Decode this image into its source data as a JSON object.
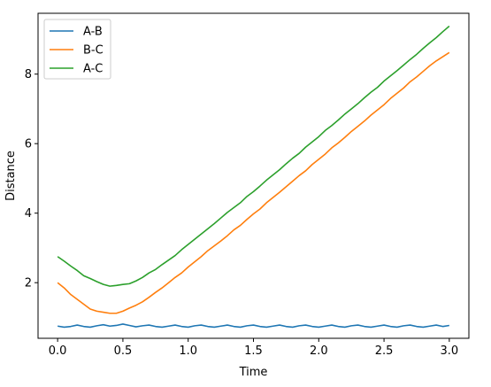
{
  "chart_data": {
    "type": "line",
    "title": "",
    "xlabel": "Time",
    "ylabel": "Distance",
    "xlim": [
      -0.15,
      3.15
    ],
    "ylim": [
      0.4,
      9.75
    ],
    "xticks": [
      0.0,
      0.5,
      1.0,
      1.5,
      2.0,
      2.5,
      3.0
    ],
    "xtick_labels": [
      "0.0",
      "0.5",
      "1.0",
      "1.5",
      "2.0",
      "2.5",
      "3.0"
    ],
    "yticks": [
      2,
      4,
      6,
      8
    ],
    "ytick_labels": [
      "2",
      "4",
      "6",
      "8"
    ],
    "grid": false,
    "legend_position": "top-left",
    "series": [
      {
        "name": "A-B",
        "color": "#1f77b4",
        "x": [
          0.0,
          0.05,
          0.1,
          0.15,
          0.2,
          0.25,
          0.3,
          0.35,
          0.4,
          0.45,
          0.5,
          0.55,
          0.6,
          0.65,
          0.7,
          0.75,
          0.8,
          0.85,
          0.9,
          0.95,
          1.0,
          1.05,
          1.1,
          1.15,
          1.2,
          1.25,
          1.3,
          1.35,
          1.4,
          1.45,
          1.5,
          1.55,
          1.6,
          1.65,
          1.7,
          1.75,
          1.8,
          1.85,
          1.9,
          1.95,
          2.0,
          2.05,
          2.1,
          2.15,
          2.2,
          2.25,
          2.3,
          2.35,
          2.4,
          2.45,
          2.5,
          2.55,
          2.6,
          2.65,
          2.7,
          2.75,
          2.8,
          2.85,
          2.9,
          2.95,
          3.0
        ],
        "y": [
          0.75,
          0.72,
          0.74,
          0.78,
          0.74,
          0.72,
          0.76,
          0.79,
          0.75,
          0.77,
          0.81,
          0.77,
          0.73,
          0.76,
          0.78,
          0.74,
          0.72,
          0.75,
          0.78,
          0.74,
          0.72,
          0.76,
          0.78,
          0.74,
          0.72,
          0.75,
          0.78,
          0.74,
          0.72,
          0.76,
          0.78,
          0.74,
          0.72,
          0.75,
          0.78,
          0.74,
          0.72,
          0.76,
          0.78,
          0.74,
          0.72,
          0.75,
          0.78,
          0.74,
          0.72,
          0.76,
          0.78,
          0.74,
          0.72,
          0.75,
          0.78,
          0.74,
          0.72,
          0.76,
          0.78,
          0.74,
          0.72,
          0.75,
          0.78,
          0.74,
          0.77
        ]
      },
      {
        "name": "B-C",
        "color": "#ff7f0e",
        "x": [
          0.0,
          0.05,
          0.1,
          0.15,
          0.2,
          0.25,
          0.3,
          0.35,
          0.4,
          0.45,
          0.5,
          0.55,
          0.6,
          0.65,
          0.7,
          0.75,
          0.8,
          0.85,
          0.9,
          0.95,
          1.0,
          1.05,
          1.1,
          1.15,
          1.2,
          1.25,
          1.3,
          1.35,
          1.4,
          1.45,
          1.5,
          1.55,
          1.6,
          1.65,
          1.7,
          1.75,
          1.8,
          1.85,
          1.9,
          1.95,
          2.0,
          2.05,
          2.1,
          2.15,
          2.2,
          2.25,
          2.3,
          2.35,
          2.4,
          2.45,
          2.5,
          2.55,
          2.6,
          2.65,
          2.7,
          2.75,
          2.8,
          2.85,
          2.9,
          2.95,
          3.0
        ],
        "y": [
          2.0,
          1.85,
          1.66,
          1.52,
          1.38,
          1.24,
          1.18,
          1.15,
          1.12,
          1.12,
          1.18,
          1.27,
          1.35,
          1.45,
          1.58,
          1.72,
          1.85,
          2.0,
          2.15,
          2.28,
          2.45,
          2.6,
          2.75,
          2.92,
          3.06,
          3.2,
          3.35,
          3.52,
          3.65,
          3.82,
          3.98,
          4.12,
          4.3,
          4.45,
          4.6,
          4.76,
          4.92,
          5.08,
          5.22,
          5.4,
          5.55,
          5.7,
          5.88,
          6.02,
          6.18,
          6.35,
          6.5,
          6.65,
          6.82,
          6.97,
          7.12,
          7.3,
          7.45,
          7.6,
          7.78,
          7.92,
          8.08,
          8.24,
          8.38,
          8.5,
          8.62
        ]
      },
      {
        "name": "A-C",
        "color": "#2ca02c",
        "x": [
          0.0,
          0.05,
          0.1,
          0.15,
          0.2,
          0.25,
          0.3,
          0.35,
          0.4,
          0.45,
          0.5,
          0.55,
          0.6,
          0.65,
          0.7,
          0.75,
          0.8,
          0.85,
          0.9,
          0.95,
          1.0,
          1.05,
          1.1,
          1.15,
          1.2,
          1.25,
          1.3,
          1.35,
          1.4,
          1.45,
          1.5,
          1.55,
          1.6,
          1.65,
          1.7,
          1.75,
          1.8,
          1.85,
          1.9,
          1.95,
          2.0,
          2.05,
          2.1,
          2.15,
          2.2,
          2.25,
          2.3,
          2.35,
          2.4,
          2.45,
          2.5,
          2.55,
          2.6,
          2.65,
          2.7,
          2.75,
          2.8,
          2.85,
          2.9,
          2.95,
          3.0
        ],
        "y": [
          2.75,
          2.62,
          2.48,
          2.35,
          2.2,
          2.12,
          2.03,
          1.95,
          1.9,
          1.92,
          1.95,
          1.97,
          2.05,
          2.15,
          2.28,
          2.38,
          2.52,
          2.65,
          2.78,
          2.95,
          3.1,
          3.25,
          3.4,
          3.55,
          3.7,
          3.86,
          4.02,
          4.16,
          4.3,
          4.48,
          4.62,
          4.78,
          4.95,
          5.1,
          5.25,
          5.42,
          5.58,
          5.72,
          5.9,
          6.05,
          6.2,
          6.38,
          6.52,
          6.68,
          6.85,
          7.0,
          7.15,
          7.32,
          7.48,
          7.62,
          7.8,
          7.95,
          8.1,
          8.26,
          8.42,
          8.57,
          8.74,
          8.9,
          9.05,
          9.22,
          9.38
        ]
      }
    ]
  }
}
